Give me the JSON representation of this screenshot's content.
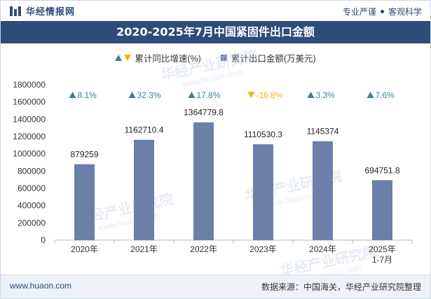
{
  "header": {
    "brand": "华经情报网",
    "slogan_left": "专业严谨",
    "slogan_right": "客观科学"
  },
  "title": "2020-2025年7月中国紧固件出口金额",
  "legend": {
    "growth": "累计同比增速(%)",
    "amount": "累计出口金额(万美元)"
  },
  "colors": {
    "bar": "#6b7fa9",
    "up": "#3f7f8f",
    "down": "#f4b400",
    "title_bg": "#2e4b79"
  },
  "chart_data": {
    "type": "bar",
    "categories": [
      "2020年",
      "2021年",
      "2022年",
      "2023年",
      "2024年",
      "2025年\n1-7月"
    ],
    "series": [
      {
        "name": "累计出口金额(万美元)",
        "values": [
          879259,
          1162710.4,
          1364779.8,
          1110530.3,
          1145374,
          694751.8
        ]
      },
      {
        "name": "累计同比增速(%)",
        "values": [
          8.1,
          32.3,
          17.8,
          -16.8,
          3.3,
          7.6
        ]
      }
    ],
    "value_labels": [
      "879259",
      "1162710.4",
      "1364779.8",
      "1110530.3",
      "1145374",
      "694751.8"
    ],
    "growth_labels": [
      "8.1%",
      "32.3%",
      "17.8%",
      "-16.8%",
      "3.3%",
      "7.6%"
    ],
    "yticks": [
      "0",
      "200000",
      "400000",
      "600000",
      "800000",
      "1000000",
      "1200000",
      "1400000",
      "1600000",
      "1800000"
    ],
    "ylim": [
      0,
      1800000
    ],
    "xlabel": "",
    "ylabel": ""
  },
  "watermarks": [
    "华经产业研究院",
    "www.huaon.com"
  ],
  "footer": {
    "website": "www.huaon.com",
    "source": "数据来源：中国海关，华经产业研究院整理"
  }
}
